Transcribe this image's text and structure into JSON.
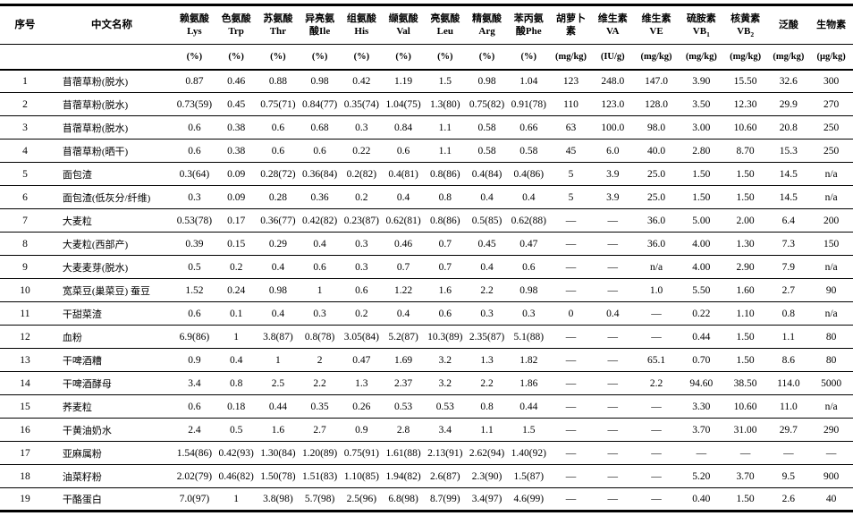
{
  "colors": {
    "background": "#ffffff",
    "text": "#000000",
    "rule": "#000000"
  },
  "table": {
    "corner_headers": [
      "序号",
      "中文名称"
    ],
    "columns": [
      {
        "line1": "赖氨酸",
        "line2": "Lys",
        "unit": "(%)"
      },
      {
        "line1": "色氨酸",
        "line2": "Trp",
        "unit": "(%)"
      },
      {
        "line1": "苏氨酸",
        "line2": "Thr",
        "unit": "(%)"
      },
      {
        "line1": "异亮氨",
        "line2": "酸Ile",
        "unit": "(%)"
      },
      {
        "line1": "组氨酸",
        "line2": "His",
        "unit": "(%)"
      },
      {
        "line1": "缬氨酸",
        "line2": "Val",
        "unit": "(%)"
      },
      {
        "line1": "亮氨酸",
        "line2": "Leu",
        "unit": "(%)"
      },
      {
        "line1": "精氨酸",
        "line2": "Arg",
        "unit": "(%)"
      },
      {
        "line1": "苯丙氨",
        "line2": "酸Phe",
        "unit": "(%)"
      },
      {
        "line1": "胡萝卜",
        "line2": "素",
        "unit": "(mg/kg)"
      },
      {
        "line1": "维生素",
        "line2": "VA",
        "unit": "(IU/g)"
      },
      {
        "line1": "维生素",
        "line2": "VE",
        "unit": "(mg/kg)"
      },
      {
        "line1": "硫胺素",
        "line2": "VB",
        "sub": "1",
        "unit": "(mg/kg)"
      },
      {
        "line1": "核黄素",
        "line2": "VB",
        "sub": "2",
        "unit": "(mg/kg)"
      },
      {
        "line1": "泛酸",
        "unit": "(mg/kg)"
      },
      {
        "line1": "生物素",
        "unit": "(μg/kg)"
      }
    ],
    "rows": [
      {
        "no": "1",
        "name": "苜蓿草粉(脱水)",
        "values": [
          "0.87",
          "0.46",
          "0.88",
          "0.98",
          "0.42",
          "1.19",
          "1.5",
          "0.98",
          "1.04",
          "123",
          "248.0",
          "147.0",
          "3.90",
          "15.50",
          "32.6",
          "300"
        ]
      },
      {
        "no": "2",
        "name": "苜蓿草粉(脱水)",
        "values": [
          "0.73(59)",
          "0.45",
          "0.75(71)",
          "0.84(77)",
          "0.35(74)",
          "1.04(75)",
          "1.3(80)",
          "0.75(82)",
          "0.91(78)",
          "110",
          "123.0",
          "128.0",
          "3.50",
          "12.30",
          "29.9",
          "270"
        ]
      },
      {
        "no": "3",
        "name": "苜蓿草粉(脱水)",
        "values": [
          "0.6",
          "0.38",
          "0.6",
          "0.68",
          "0.3",
          "0.84",
          "1.1",
          "0.58",
          "0.66",
          "63",
          "100.0",
          "98.0",
          "3.00",
          "10.60",
          "20.8",
          "250"
        ]
      },
      {
        "no": "4",
        "name": "苜蓿草粉(晒干)",
        "values": [
          "0.6",
          "0.38",
          "0.6",
          "0.6",
          "0.22",
          "0.6",
          "1.1",
          "0.58",
          "0.58",
          "45",
          "6.0",
          "40.0",
          "2.80",
          "8.70",
          "15.3",
          "250"
        ]
      },
      {
        "no": "5",
        "name": "面包渣",
        "values": [
          "0.3(64)",
          "0.09",
          "0.28(72)",
          "0.36(84)",
          "0.2(82)",
          "0.4(81)",
          "0.8(86)",
          "0.4(84)",
          "0.4(86)",
          "5",
          "3.9",
          "25.0",
          "1.50",
          "1.50",
          "14.5",
          "n/a"
        ]
      },
      {
        "no": "6",
        "name": "面包渣(低灰分/纤维)",
        "values": [
          "0.3",
          "0.09",
          "0.28",
          "0.36",
          "0.2",
          "0.4",
          "0.8",
          "0.4",
          "0.4",
          "5",
          "3.9",
          "25.0",
          "1.50",
          "1.50",
          "14.5",
          "n/a"
        ]
      },
      {
        "no": "7",
        "name": "大麦粒",
        "values": [
          "0.53(78)",
          "0.17",
          "0.36(77)",
          "0.42(82)",
          "0.23(87)",
          "0.62(81)",
          "0.8(86)",
          "0.5(85)",
          "0.62(88)",
          "—",
          "—",
          "36.0",
          "5.00",
          "2.00",
          "6.4",
          "200"
        ]
      },
      {
        "no": "8",
        "name": "大麦粒(西部产)",
        "values": [
          "0.39",
          "0.15",
          "0.29",
          "0.4",
          "0.3",
          "0.46",
          "0.7",
          "0.45",
          "0.47",
          "—",
          "—",
          "36.0",
          "4.00",
          "1.30",
          "7.3",
          "150"
        ]
      },
      {
        "no": "9",
        "name": "大麦麦芽(脱水)",
        "values": [
          "0.5",
          "0.2",
          "0.4",
          "0.6",
          "0.3",
          "0.7",
          "0.7",
          "0.4",
          "0.6",
          "—",
          "—",
          "n/a",
          "4.00",
          "2.90",
          "7.9",
          "n/a"
        ]
      },
      {
        "no": "10",
        "name": "宽菜豆(巢菜豆) 蚕豆",
        "values": [
          "1.52",
          "0.24",
          "0.98",
          "1",
          "0.6",
          "1.22",
          "1.6",
          "2.2",
          "0.98",
          "—",
          "—",
          "1.0",
          "5.50",
          "1.60",
          "2.7",
          "90"
        ]
      },
      {
        "no": "11",
        "name": "干甜菜渣",
        "values": [
          "0.6",
          "0.1",
          "0.4",
          "0.3",
          "0.2",
          "0.4",
          "0.6",
          "0.3",
          "0.3",
          "0",
          "0.4",
          "—",
          "0.22",
          "1.10",
          "0.8",
          "n/a"
        ]
      },
      {
        "no": "12",
        "name": "血粉",
        "values": [
          "6.9(86)",
          "1",
          "3.8(87)",
          "0.8(78)",
          "3.05(84)",
          "5.2(87)",
          "10.3(89)",
          "2.35(87)",
          "5.1(88)",
          "—",
          "—",
          "—",
          "0.44",
          "1.50",
          "1.1",
          "80"
        ]
      },
      {
        "no": "13",
        "name": "干啤酒糟",
        "values": [
          "0.9",
          "0.4",
          "1",
          "2",
          "0.47",
          "1.69",
          "3.2",
          "1.3",
          "1.82",
          "—",
          "—",
          "65.1",
          "0.70",
          "1.50",
          "8.6",
          "80"
        ]
      },
      {
        "no": "14",
        "name": "干啤酒酵母",
        "values": [
          "3.4",
          "0.8",
          "2.5",
          "2.2",
          "1.3",
          "2.37",
          "3.2",
          "2.2",
          "1.86",
          "—",
          "—",
          "2.2",
          "94.60",
          "38.50",
          "114.0",
          "5000"
        ]
      },
      {
        "no": "15",
        "name": "荞麦粒",
        "values": [
          "0.6",
          "0.18",
          "0.44",
          "0.35",
          "0.26",
          "0.53",
          "0.53",
          "0.8",
          "0.44",
          "—",
          "—",
          "—",
          "3.30",
          "10.60",
          "11.0",
          "n/a"
        ]
      },
      {
        "no": "16",
        "name": "干黄油奶水",
        "values": [
          "2.4",
          "0.5",
          "1.6",
          "2.7",
          "0.9",
          "2.8",
          "3.4",
          "1.1",
          "1.5",
          "—",
          "—",
          "—",
          "3.70",
          "31.00",
          "29.7",
          "290"
        ]
      },
      {
        "no": "17",
        "name": "亚麻属粉",
        "values": [
          "1.54(86)",
          "0.42(93)",
          "1.30(84)",
          "1.20(89)",
          "0.75(91)",
          "1.61(88)",
          "2.13(91)",
          "2.62(94)",
          "1.40(92)",
          "—",
          "—",
          "—",
          "—",
          "—",
          "—",
          "—"
        ]
      },
      {
        "no": "18",
        "name": "油菜籽粉",
        "values": [
          "2.02(79)",
          "0.46(82)",
          "1.50(78)",
          "1.51(83)",
          "1.10(85)",
          "1.94(82)",
          "2.6(87)",
          "2.3(90)",
          "1.5(87)",
          "—",
          "—",
          "—",
          "5.20",
          "3.70",
          "9.5",
          "900"
        ]
      },
      {
        "no": "19",
        "name": "干酪蛋白",
        "values": [
          "7.0(97)",
          "1",
          "3.8(98)",
          "5.7(98)",
          "2.5(96)",
          "6.8(98)",
          "8.7(99)",
          "3.4(97)",
          "4.6(99)",
          "—",
          "—",
          "—",
          "0.40",
          "1.50",
          "2.6",
          "40"
        ]
      }
    ]
  }
}
